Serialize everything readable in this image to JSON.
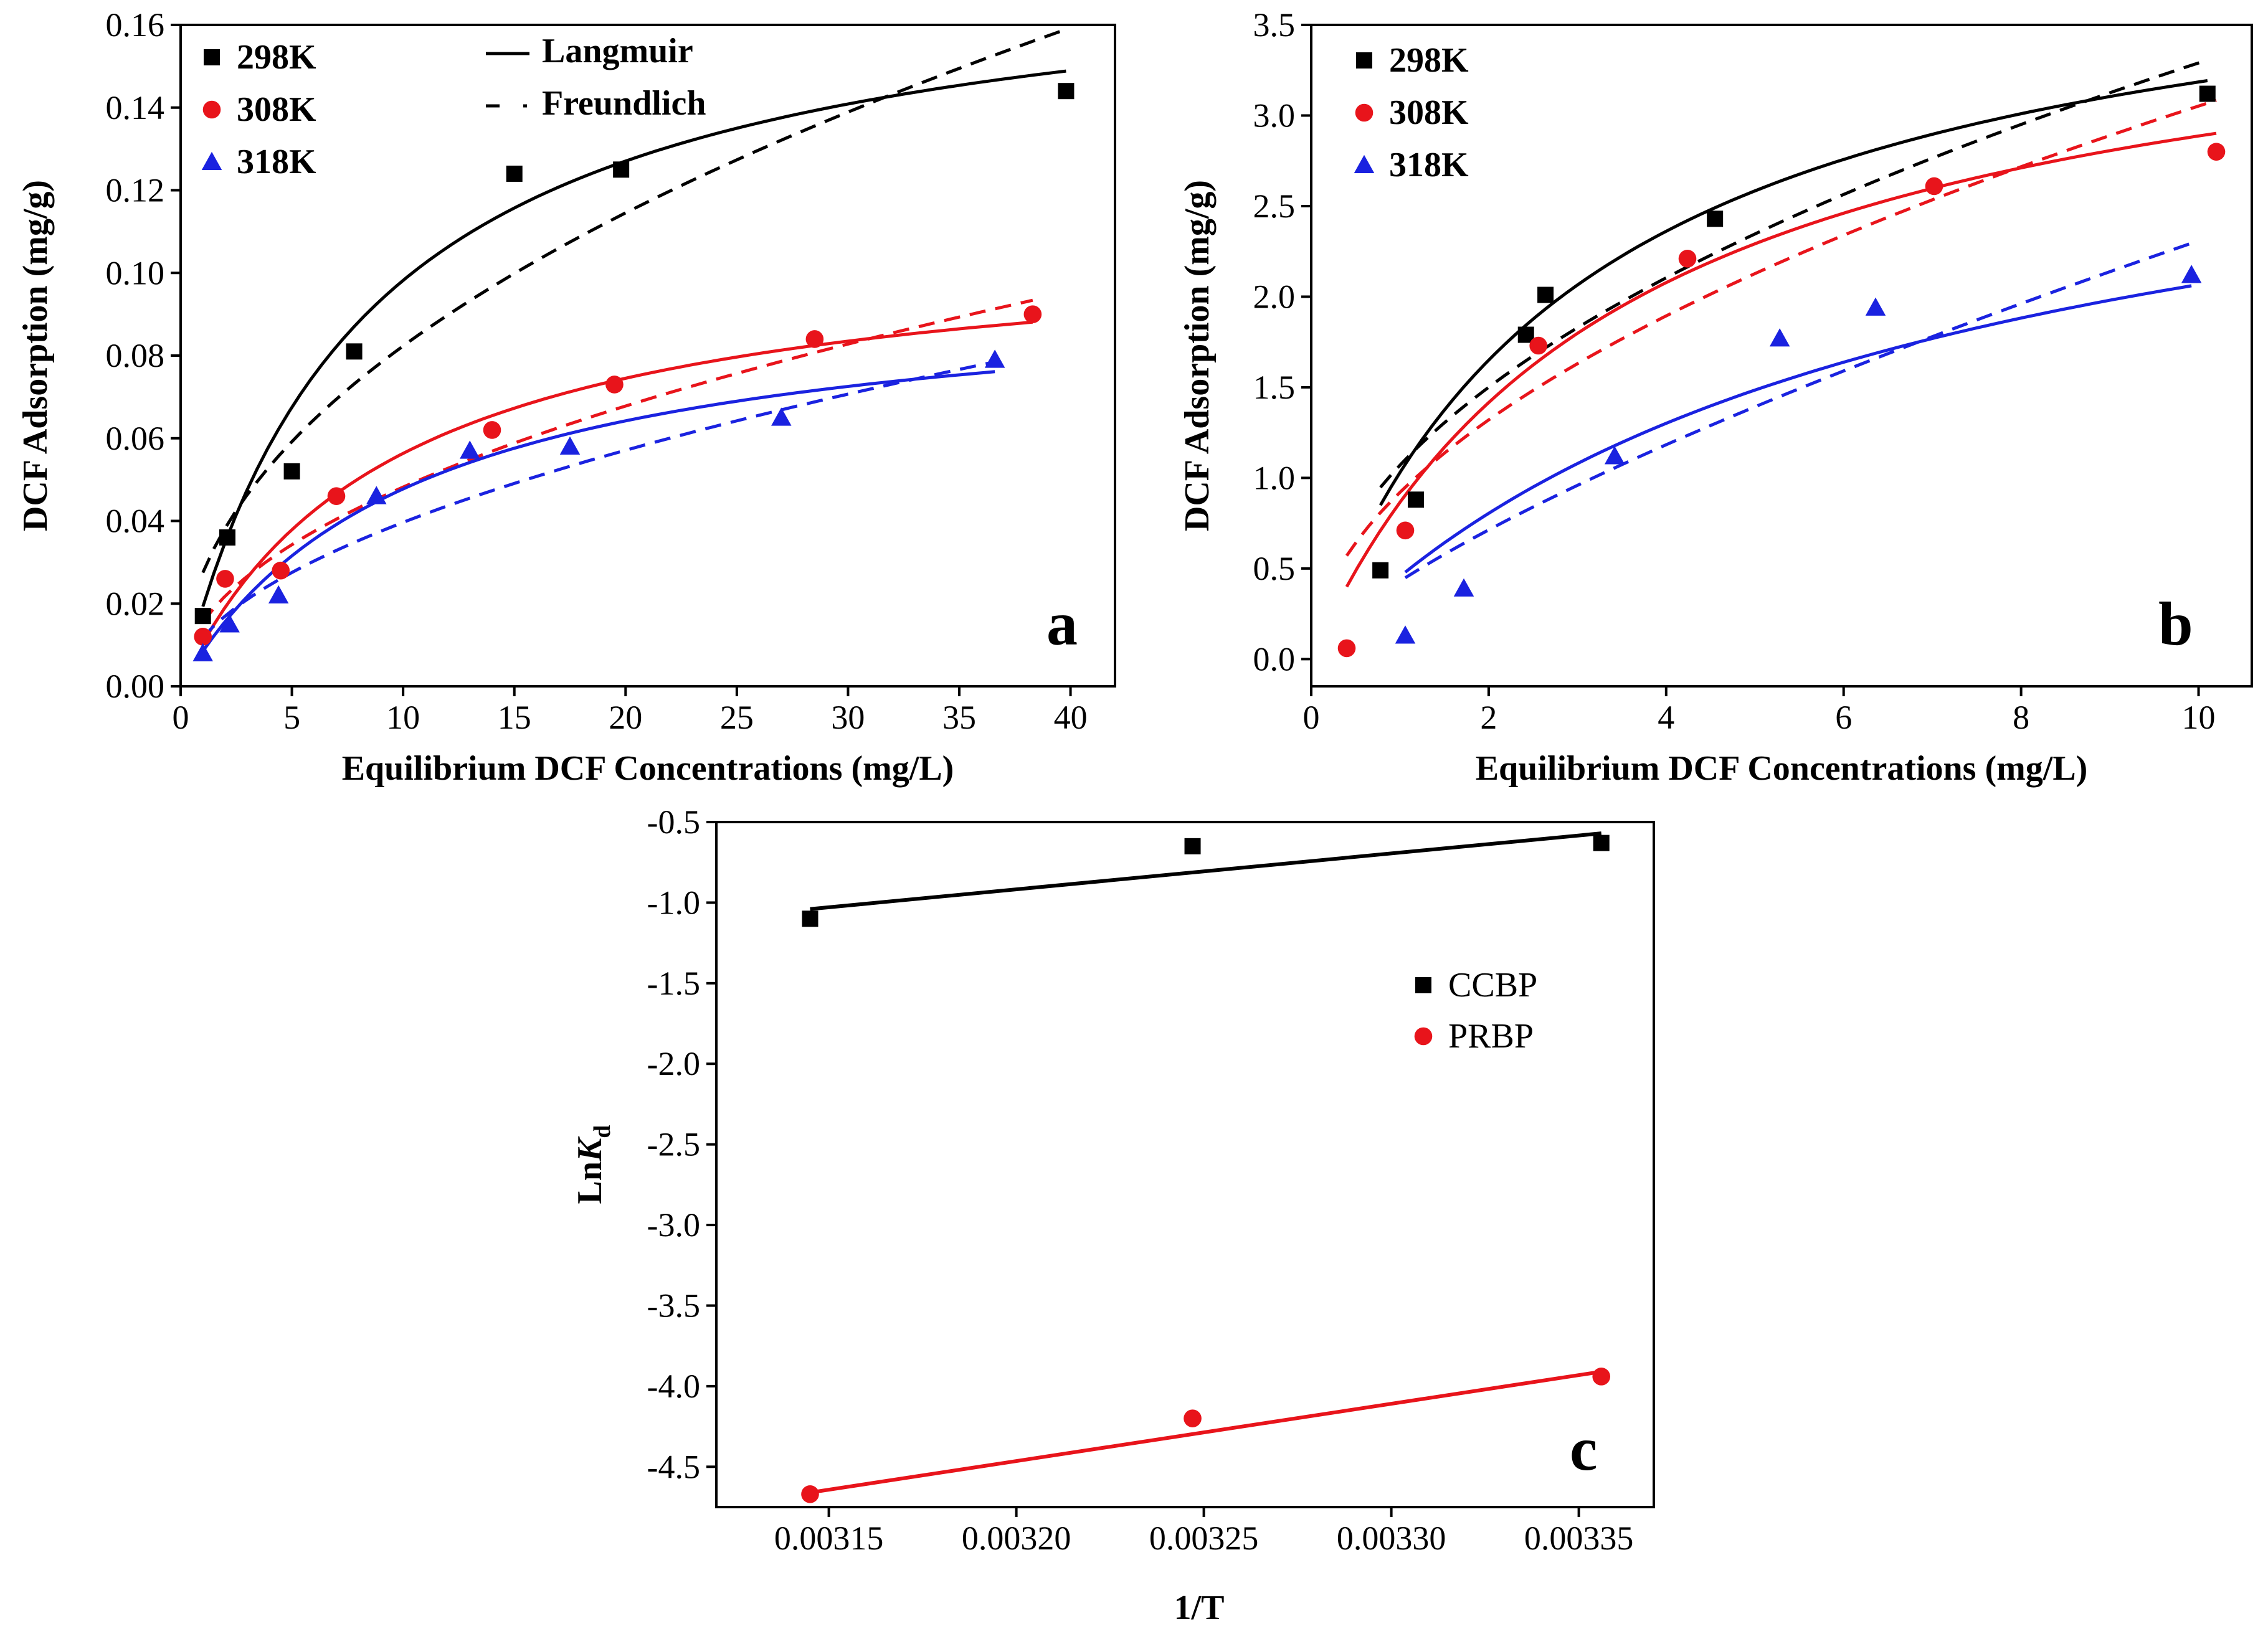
{
  "chart_data": [
    {
      "id": "a",
      "type": "scatter",
      "panel_label": "a",
      "xlabel": "Equilibrium DCF Concentrations (mg/L)",
      "ylabel": "DCF Adsorption (mg/g)",
      "xlim": [
        0,
        42
      ],
      "ylim": [
        0,
        0.16
      ],
      "xticks": [
        0,
        5,
        10,
        15,
        20,
        25,
        30,
        35,
        40
      ],
      "xtick_labels": [
        "0",
        "5",
        "10",
        "15",
        "20",
        "25",
        "30",
        "35",
        "40"
      ],
      "yticks": [
        0,
        0.02,
        0.04,
        0.06,
        0.08,
        0.1,
        0.12,
        0.14,
        0.16
      ],
      "ytick_labels": [
        "0.00",
        "0.02",
        "0.04",
        "0.06",
        "0.08",
        "0.10",
        "0.12",
        "0.14",
        "0.16"
      ],
      "legend": {
        "placement": "top-left",
        "series_style": "bold",
        "fit_items": [
          {
            "label": "Langmuir",
            "style": "solid"
          },
          {
            "label": "Freundlich",
            "style": "dashed"
          }
        ]
      },
      "series": [
        {
          "name": "298K",
          "marker": "square",
          "color": "#000000",
          "x": [
            1.0,
            2.1,
            5.0,
            7.8,
            15.0,
            19.8,
            39.8
          ],
          "y": [
            0.017,
            0.036,
            0.052,
            0.081,
            0.124,
            0.125,
            0.144
          ],
          "langmuir": {
            "qm": 0.18,
            "kl": 0.12,
            "x_start": 1.0,
            "x_end": 39.8
          },
          "freundlich": {
            "kf": 0.0275,
            "n": 2.1,
            "x_start": 1.0,
            "x_end": 39.8
          }
        },
        {
          "name": "308K",
          "marker": "circle",
          "color": "#e8141b",
          "x": [
            1.0,
            2.0,
            4.5,
            7.0,
            14.0,
            19.5,
            28.5,
            38.3
          ],
          "y": [
            0.012,
            0.026,
            0.028,
            0.046,
            0.062,
            0.073,
            0.084,
            0.09
          ],
          "langmuir": {
            "qm": 0.11,
            "kl": 0.105,
            "x_start": 1.0,
            "x_end": 38.3
          },
          "freundlich": {
            "kf": 0.0155,
            "n": 2.03,
            "x_start": 1.0,
            "x_end": 38.3
          }
        },
        {
          "name": "318K",
          "marker": "triangle",
          "color": "#1a22e0",
          "x": [
            1.0,
            2.2,
            4.4,
            8.8,
            13.0,
            17.5,
            27.0,
            36.6
          ],
          "y": [
            0.008,
            0.015,
            0.022,
            0.046,
            0.057,
            0.058,
            0.065,
            0.079
          ],
          "langmuir": {
            "qm": 0.098,
            "kl": 0.095,
            "x_start": 1.0,
            "x_end": 36.6
          },
          "freundlich": {
            "kf": 0.0118,
            "n": 1.9,
            "x_start": 1.0,
            "x_end": 36.6
          }
        }
      ]
    },
    {
      "id": "b",
      "type": "scatter",
      "panel_label": "b",
      "xlabel": "Equilibrium DCF Concentrations (mg/L)",
      "ylabel": "DCF Adsorption (mg/g)",
      "xlim": [
        0,
        10.6
      ],
      "ylim": [
        -0.15,
        3.5
      ],
      "xticks": [
        0,
        2,
        4,
        6,
        8,
        10
      ],
      "xtick_labels": [
        "0",
        "2",
        "4",
        "6",
        "8",
        "10"
      ],
      "yticks": [
        0,
        0.5,
        1.0,
        1.5,
        2.0,
        2.5,
        3.0,
        3.5
      ],
      "ytick_labels": [
        "0.0",
        "0.5",
        "1.0",
        "1.5",
        "2.0",
        "2.5",
        "3.0",
        "3.5"
      ],
      "legend": {
        "placement": "top-left",
        "series_style": "bold",
        "fit_items": []
      },
      "series": [
        {
          "name": "298K",
          "marker": "square",
          "color": "#000000",
          "x": [
            0.78,
            1.18,
            2.42,
            2.64,
            4.55,
            10.1
          ],
          "y": [
            0.49,
            0.88,
            1.79,
            2.01,
            2.43,
            3.12
          ],
          "langmuir": {
            "qm": 4.15,
            "kl": 0.33,
            "x_start": 0.78,
            "x_end": 10.1
          },
          "freundlich": {
            "kf": 1.07,
            "n": 2.05,
            "x_start": 0.78,
            "x_end": 10.1
          }
        },
        {
          "name": "308K",
          "marker": "circle",
          "color": "#e8141b",
          "x": [
            0.4,
            1.06,
            2.56,
            4.24,
            7.02,
            10.2
          ],
          "y": [
            0.06,
            0.71,
            1.73,
            2.21,
            2.61,
            2.8
          ],
          "langmuir": {
            "qm": 3.9,
            "kl": 0.285,
            "x_start": 0.4,
            "x_end": 10.2
          },
          "freundlich": {
            "kf": 0.92,
            "n": 1.92,
            "x_start": 0.4,
            "x_end": 10.2
          }
        },
        {
          "name": "318K",
          "marker": "triangle",
          "color": "#1a22e0",
          "x": [
            1.06,
            1.72,
            3.42,
            5.28,
            6.36,
            9.92
          ],
          "y": [
            0.13,
            0.39,
            1.12,
            1.77,
            1.94,
            2.12
          ],
          "langmuir": {
            "qm": 3.4,
            "kl": 0.155,
            "x_start": 1.06,
            "x_end": 9.92
          },
          "freundlich": {
            "kf": 0.43,
            "n": 1.37,
            "x_start": 1.06,
            "x_end": 9.92
          }
        }
      ]
    },
    {
      "id": "c",
      "type": "scatter",
      "panel_label": "c",
      "xlabel": "1/T",
      "ylabel": "LnKd",
      "ylabel_main": "Ln",
      "ylabel_italic": "K",
      "ylabel_sub": "d",
      "xlim": [
        0.00312,
        0.00337
      ],
      "ylim": [
        -4.75,
        -0.5
      ],
      "xticks": [
        0.00315,
        0.0032,
        0.00325,
        0.0033,
        0.00335
      ],
      "xtick_labels": [
        "0.00315",
        "0.00320",
        "0.00325",
        "0.00330",
        "0.00335"
      ],
      "yticks": [
        -0.5,
        -1.0,
        -1.5,
        -2.0,
        -2.5,
        -3.0,
        -3.5,
        -4.0,
        -4.5
      ],
      "ytick_labels": [
        "-0.5",
        "-1.0",
        "-1.5",
        "-2.0",
        "-2.5",
        "-3.0",
        "-3.5",
        "-4.0",
        "-4.5"
      ],
      "legend": {
        "placement": "right",
        "series_style": "plain",
        "fit_items": []
      },
      "series": [
        {
          "name": "CCBP",
          "marker": "square",
          "color": "#000000",
          "x": [
            0.003145,
            0.003247,
            0.003356
          ],
          "y": [
            -1.1,
            -0.65,
            -0.63
          ],
          "fit_line": {
            "x": [
              0.003145,
              0.003356
            ],
            "y": [
              -1.04,
              -0.57
            ]
          }
        },
        {
          "name": "PRBP",
          "marker": "circle",
          "color": "#e8141b",
          "x": [
            0.003145,
            0.003247,
            0.003356
          ],
          "y": [
            -4.67,
            -4.2,
            -3.94
          ],
          "fit_line": {
            "x": [
              0.003145,
              0.003356
            ],
            "y": [
              -4.66,
              -3.91
            ]
          }
        }
      ]
    }
  ]
}
